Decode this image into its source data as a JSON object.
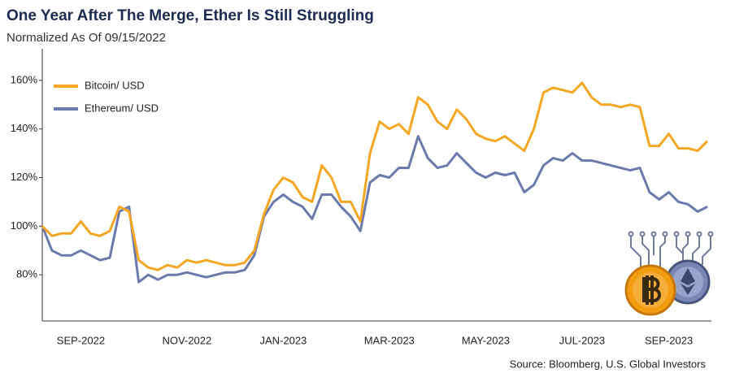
{
  "chart_data": {
    "type": "line",
    "title": "One Year After The Merge, Ether Is Still Struggling",
    "subtitle": "Normalized As Of 09/15/2022",
    "source": "Source: Bloomberg, U.S. Global Investors",
    "categories": [
      null,
      null,
      null,
      null,
      "SEP-2022",
      null,
      null,
      null,
      null,
      null,
      null,
      null,
      null,
      null,
      null,
      "NOV-2022",
      null,
      null,
      null,
      null,
      null,
      null,
      null,
      null,
      null,
      "JAN-2023",
      null,
      null,
      null,
      null,
      null,
      null,
      null,
      null,
      null,
      null,
      "MAR-2023",
      null,
      null,
      null,
      null,
      null,
      null,
      null,
      null,
      null,
      "MAY-2023",
      null,
      null,
      null,
      null,
      null,
      null,
      null,
      null,
      null,
      "JUL-2023",
      null,
      null,
      null,
      null,
      null,
      null,
      null,
      null,
      "SEP-2023",
      null,
      null,
      null,
      null
    ],
    "series": [
      {
        "name": "Bitcoin/ USD",
        "color": "#f5a623",
        "values": [
          100,
          96,
          97,
          97,
          102,
          97,
          96,
          98,
          108,
          106,
          86,
          83,
          82,
          84,
          83,
          86,
          85,
          86,
          85,
          84,
          84,
          85,
          90,
          105,
          115,
          120,
          118,
          112,
          110,
          125,
          120,
          110,
          110,
          102,
          130,
          143,
          140,
          142,
          138,
          153,
          150,
          143,
          140,
          148,
          144,
          138,
          136,
          135,
          137,
          134,
          131,
          140,
          155,
          157,
          156,
          155,
          159,
          153,
          150,
          150,
          149,
          150,
          149,
          133,
          133,
          138,
          132,
          132,
          131,
          135
        ]
      },
      {
        "name": "Ethereum/ USD",
        "color": "#6b7aab",
        "values": [
          100,
          90,
          88,
          88,
          90,
          88,
          86,
          87,
          106,
          108,
          77,
          80,
          78,
          80,
          80,
          81,
          80,
          79,
          80,
          81,
          81,
          82,
          88,
          104,
          110,
          113,
          110,
          108,
          103,
          113,
          113,
          108,
          104,
          98,
          118,
          121,
          120,
          124,
          124,
          137,
          128,
          124,
          125,
          130,
          126,
          122,
          120,
          122,
          121,
          122,
          114,
          117,
          125,
          128,
          127,
          130,
          127,
          127,
          126,
          125,
          124,
          123,
          124,
          114,
          111,
          114,
          110,
          109,
          106,
          108
        ]
      }
    ],
    "ylim": [
      61,
      173
    ],
    "yticks": [
      {
        "value": 80,
        "label": "80%"
      },
      {
        "value": 100,
        "label": "100%"
      },
      {
        "value": 120,
        "label": "120%"
      },
      {
        "value": 140,
        "label": "140%"
      },
      {
        "value": 160,
        "label": "160%"
      }
    ],
    "legend": "upper-left"
  }
}
